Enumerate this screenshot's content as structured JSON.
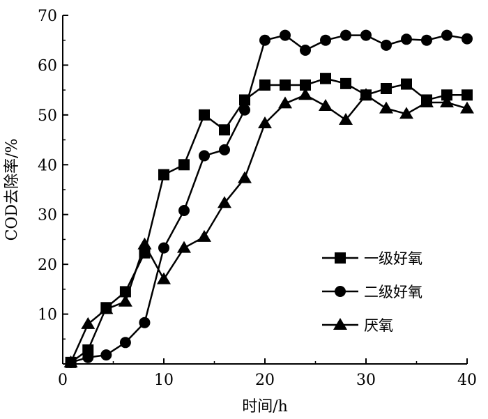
{
  "chart_data": {
    "type": "line",
    "title": "",
    "xlabel": "时间/h",
    "ylabel": "COD去除率/%",
    "xlim": [
      0,
      40
    ],
    "ylim": [
      0,
      70
    ],
    "xticks": [
      0,
      10,
      20,
      30,
      40
    ],
    "yticks": [
      10,
      20,
      30,
      40,
      50,
      60,
      70
    ],
    "grid": false,
    "legend_position": "right",
    "series": [
      {
        "name": "一级好氧",
        "marker": "square",
        "x": [
          0.8,
          2.5,
          4.3,
          6.2,
          8.1,
          10.0,
          12.0,
          14.0,
          16.0,
          18.0,
          20.0,
          22.0,
          24.0,
          26.0,
          28.0,
          30.0,
          32.0,
          34.0,
          36.0,
          38.0,
          40.0
        ],
        "y": [
          0.3,
          2.8,
          11.3,
          14.5,
          22.3,
          38.0,
          40.0,
          50.0,
          47.0,
          53.0,
          56.0,
          56.0,
          56.0,
          57.3,
          56.3,
          54.0,
          55.3,
          56.2,
          53.0,
          54.0,
          54.0
        ]
      },
      {
        "name": "二级好氧",
        "marker": "circle",
        "x": [
          0.8,
          2.5,
          4.3,
          6.2,
          8.1,
          10.0,
          12.0,
          14.0,
          16.0,
          18.0,
          20.0,
          22.0,
          24.0,
          26.0,
          28.0,
          30.0,
          32.0,
          34.0,
          36.0,
          38.0,
          40.0
        ],
        "y": [
          0.3,
          1.3,
          1.8,
          4.3,
          8.3,
          23.3,
          30.8,
          41.8,
          43.0,
          51.0,
          65.0,
          66.0,
          63.0,
          65.0,
          66.0,
          66.0,
          64.0,
          65.2,
          65.0,
          66.0,
          65.3
        ]
      },
      {
        "name": "厌氧",
        "marker": "triangle",
        "x": [
          0.8,
          2.5,
          4.3,
          6.2,
          8.1,
          10.0,
          12.0,
          14.0,
          16.0,
          18.0,
          20.0,
          22.0,
          24.0,
          26.0,
          28.0,
          30.0,
          32.0,
          34.0,
          36.0,
          38.0,
          40.0
        ],
        "y": [
          0.3,
          8.0,
          11.0,
          12.5,
          24.0,
          17.0,
          23.3,
          25.5,
          32.3,
          37.3,
          48.3,
          52.3,
          54.0,
          51.8,
          49.0,
          54.0,
          51.3,
          50.2,
          52.5,
          52.5,
          51.3
        ]
      }
    ]
  }
}
